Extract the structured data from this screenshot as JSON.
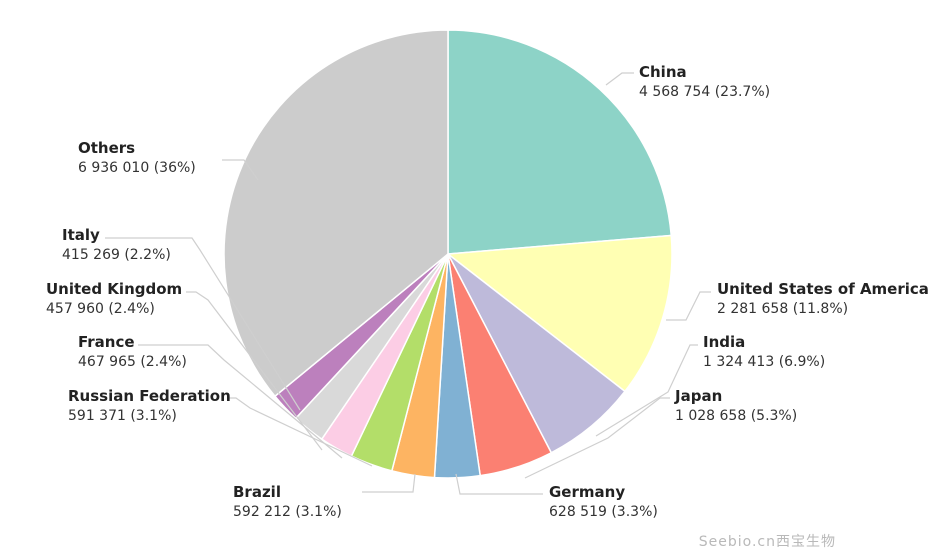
{
  "chart_data": {
    "type": "pie",
    "slices": [
      {
        "label": "China",
        "value": 4568754,
        "value_text": "4 568 754 (23.7%)",
        "color": "#8dd3c7"
      },
      {
        "label": "United States of America",
        "value": 2281658,
        "value_text": "2 281 658 (11.8%)",
        "color": "#ffffb3"
      },
      {
        "label": "India",
        "value": 1324413,
        "value_text": "1 324 413 (6.9%)",
        "color": "#bebada"
      },
      {
        "label": "Japan",
        "value": 1028658,
        "value_text": "1 028 658 (5.3%)",
        "color": "#fb8072"
      },
      {
        "label": "Germany",
        "value": 628519,
        "value_text": "628 519 (3.3%)",
        "color": "#80b1d3"
      },
      {
        "label": "Brazil",
        "value": 592212,
        "value_text": "592 212 (3.1%)",
        "color": "#fdb462"
      },
      {
        "label": "Russian Federation",
        "value": 591371,
        "value_text": "591 371 (3.1%)",
        "color": "#b3de69"
      },
      {
        "label": "France",
        "value": 467965,
        "value_text": "467 965 (2.4%)",
        "color": "#fccde5"
      },
      {
        "label": "United Kingdom",
        "value": 457960,
        "value_text": "457 960 (2.4%)",
        "color": "#d9d9d9"
      },
      {
        "label": "Italy",
        "value": 415269,
        "value_text": "415 269 (2.2%)",
        "color": "#bc80bd"
      },
      {
        "label": "Others",
        "value": 6936010,
        "value_text": "6 936 010 (36%)",
        "color": "#cccccc"
      }
    ]
  },
  "watermark": "Seebio.cn西宝生物"
}
